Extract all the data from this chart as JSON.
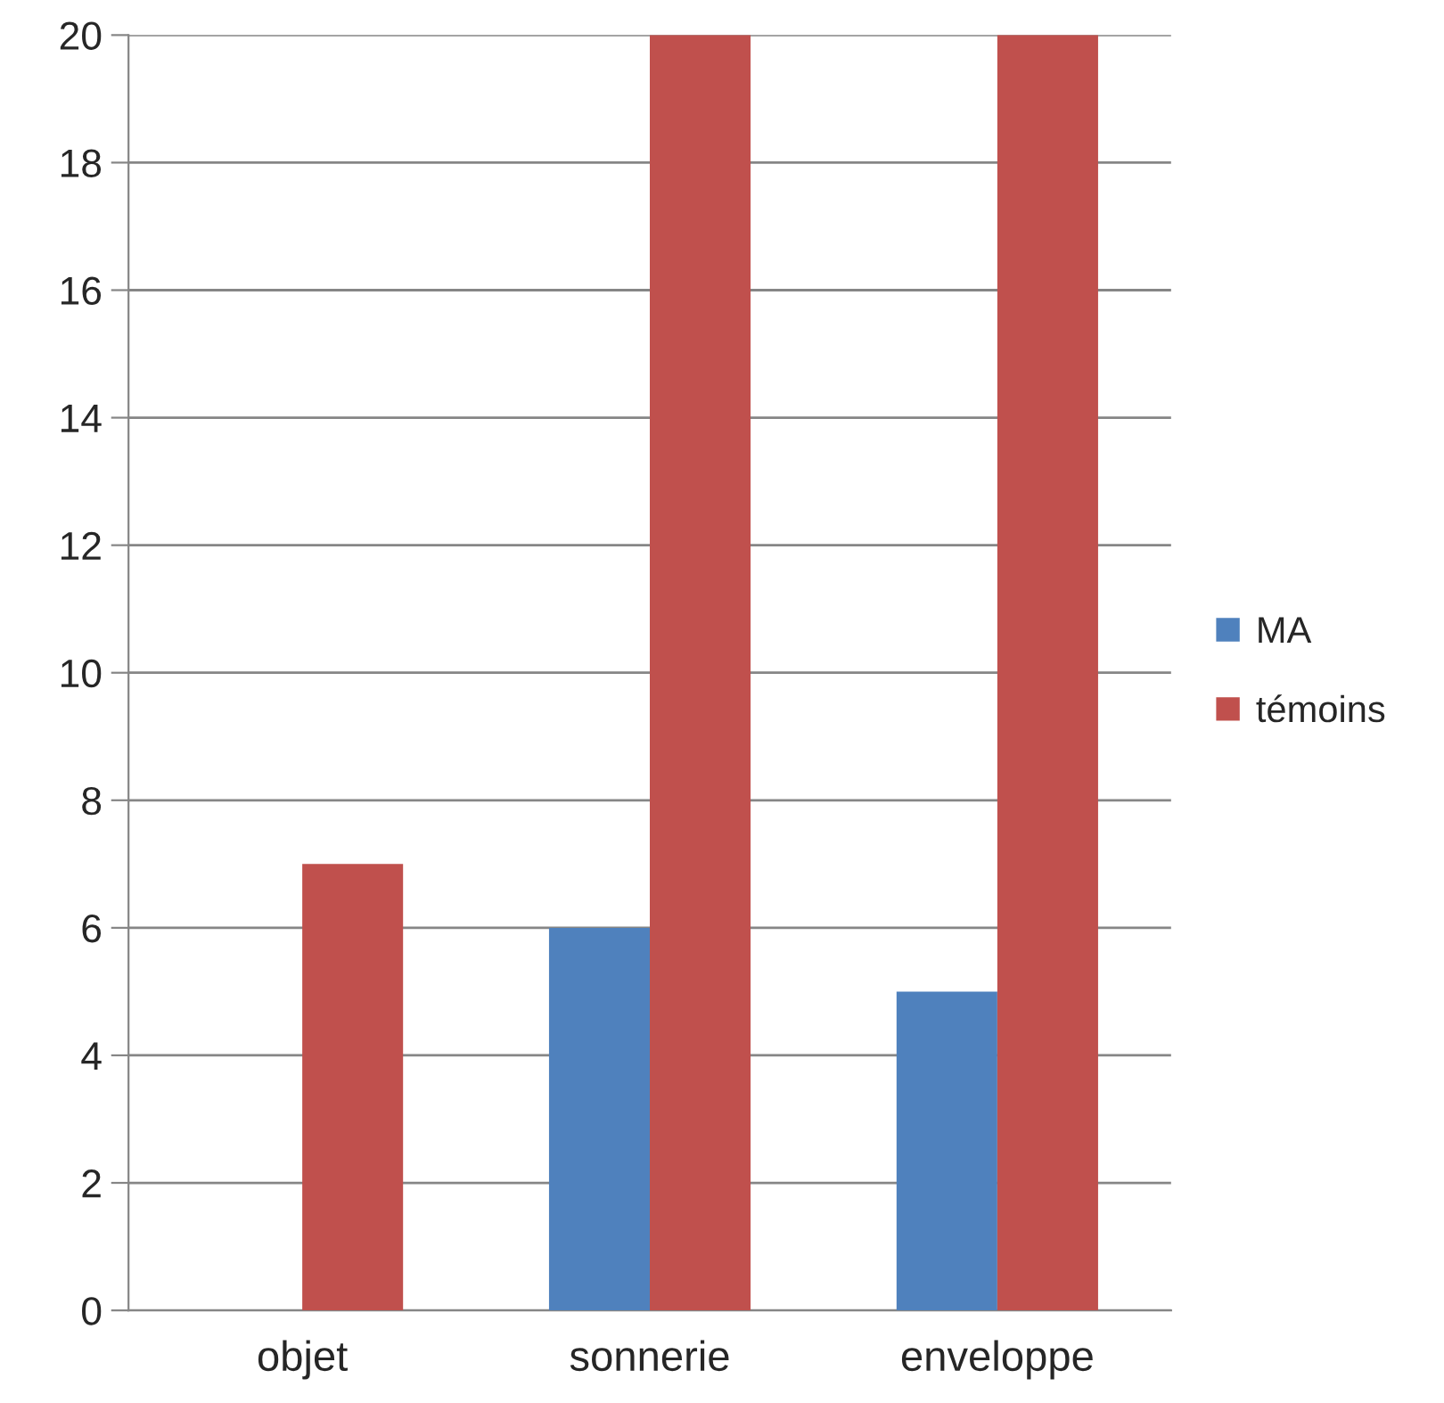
{
  "chart_data": {
    "type": "bar",
    "categories": [
      "objet",
      "sonnerie",
      "enveloppe"
    ],
    "series": [
      {
        "name": "MA",
        "color": "#4f81bd",
        "values": [
          0,
          6,
          5
        ]
      },
      {
        "name": "témoins",
        "color": "#c0504d",
        "values": [
          7,
          20,
          20
        ]
      }
    ],
    "ylim": [
      0,
      20
    ],
    "yticks": [
      0,
      2,
      4,
      6,
      8,
      10,
      12,
      14,
      16,
      18,
      20
    ],
    "grid": "y",
    "legend": "right"
  }
}
